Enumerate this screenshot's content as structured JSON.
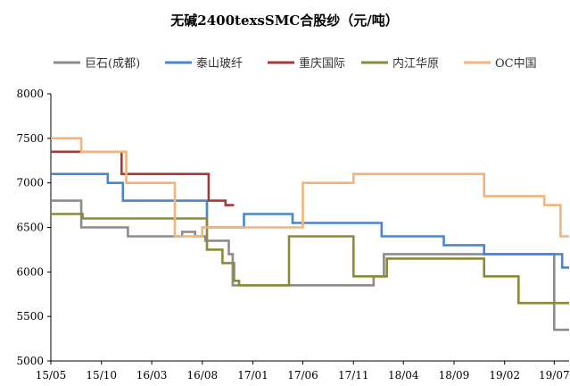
{
  "chart_data": {
    "type": "line",
    "title": "无碱2400texsSMC合股纱（元/吨）",
    "xlabel": "",
    "ylabel": "",
    "xlim": [
      "2015-05-01",
      "2019-08-15"
    ],
    "ylim": [
      5000,
      8000
    ],
    "y_ticks": [
      5000,
      5500,
      6000,
      6500,
      7000,
      7500,
      8000
    ],
    "x_ticks": [
      "15/05",
      "15/10",
      "16/03",
      "16/08",
      "17/01",
      "17/06",
      "17/11",
      "18/04",
      "18/09",
      "19/02",
      "19/07"
    ],
    "x_tick_dates": [
      "2015-05-01",
      "2015-10-01",
      "2016-03-01",
      "2016-08-01",
      "2017-01-01",
      "2017-06-01",
      "2017-11-01",
      "2018-04-01",
      "2018-09-01",
      "2019-02-01",
      "2019-07-01"
    ],
    "grid": false,
    "legend_position": "top",
    "series": [
      {
        "name": "巨石(成都)",
        "color": "#8c8c8c",
        "points": [
          [
            "2015-05-01",
            6800
          ],
          [
            "2015-08-01",
            6800
          ],
          [
            "2015-08-01",
            6500
          ],
          [
            "2015-12-20",
            6500
          ],
          [
            "2015-12-20",
            6400
          ],
          [
            "2016-06-01",
            6400
          ],
          [
            "2016-06-01",
            6450
          ],
          [
            "2016-07-10",
            6450
          ],
          [
            "2016-07-10",
            6400
          ],
          [
            "2016-08-10",
            6400
          ],
          [
            "2016-08-10",
            6350
          ],
          [
            "2016-10-20",
            6350
          ],
          [
            "2016-10-20",
            6200
          ],
          [
            "2016-11-01",
            6200
          ],
          [
            "2016-11-01",
            5850
          ],
          [
            "2018-01-01",
            5850
          ],
          [
            "2018-01-01",
            5950
          ],
          [
            "2018-02-01",
            5950
          ],
          [
            "2018-02-01",
            6200
          ],
          [
            "2019-07-01",
            6200
          ],
          [
            "2019-07-01",
            5350
          ],
          [
            "2019-08-15",
            5350
          ]
        ]
      },
      {
        "name": "泰山玻纤",
        "color": "#4a86d0",
        "points": [
          [
            "2015-05-01",
            7100
          ],
          [
            "2015-10-20",
            7100
          ],
          [
            "2015-10-20",
            7000
          ],
          [
            "2015-12-05",
            7000
          ],
          [
            "2015-12-05",
            6800
          ],
          [
            "2016-08-15",
            6800
          ],
          [
            "2016-08-15",
            6500
          ],
          [
            "2016-12-05",
            6500
          ],
          [
            "2016-12-05",
            6650
          ],
          [
            "2017-05-01",
            6650
          ],
          [
            "2017-05-01",
            6550
          ],
          [
            "2018-01-25",
            6550
          ],
          [
            "2018-01-25",
            6400
          ],
          [
            "2018-08-01",
            6400
          ],
          [
            "2018-08-01",
            6300
          ],
          [
            "2018-12-01",
            6300
          ],
          [
            "2018-12-01",
            6200
          ],
          [
            "2019-07-25",
            6200
          ],
          [
            "2019-07-25",
            6050
          ],
          [
            "2019-08-15",
            6050
          ]
        ]
      },
      {
        "name": "重庆国际",
        "color": "#a63a3a",
        "points": [
          [
            "2015-05-01",
            7350
          ],
          [
            "2015-12-01",
            7350
          ],
          [
            "2015-12-01",
            7100
          ],
          [
            "2016-08-20",
            7100
          ],
          [
            "2016-08-20",
            6800
          ],
          [
            "2016-10-10",
            6800
          ],
          [
            "2016-10-10",
            6750
          ],
          [
            "2016-11-05",
            6750
          ]
        ]
      },
      {
        "name": "内江华原",
        "color": "#8a8a3a",
        "points": [
          [
            "2015-05-01",
            6650
          ],
          [
            "2015-08-05",
            6650
          ],
          [
            "2015-08-05",
            6600
          ],
          [
            "2016-08-15",
            6600
          ],
          [
            "2016-08-15",
            6250
          ],
          [
            "2016-10-01",
            6250
          ],
          [
            "2016-10-01",
            6100
          ],
          [
            "2016-11-05",
            6100
          ],
          [
            "2016-11-05",
            5900
          ],
          [
            "2016-11-20",
            5900
          ],
          [
            "2016-11-20",
            5850
          ],
          [
            "2017-04-20",
            5850
          ],
          [
            "2017-04-20",
            6400
          ],
          [
            "2017-11-01",
            6400
          ],
          [
            "2017-11-01",
            5950
          ],
          [
            "2018-02-10",
            5950
          ],
          [
            "2018-02-10",
            6150
          ],
          [
            "2018-12-01",
            6150
          ],
          [
            "2018-12-01",
            5950
          ],
          [
            "2019-03-15",
            5950
          ],
          [
            "2019-03-15",
            5650
          ],
          [
            "2019-08-15",
            5650
          ]
        ]
      },
      {
        "name": "OC中国",
        "color": "#f5b27a",
        "points": [
          [
            "2015-05-01",
            7500
          ],
          [
            "2015-08-01",
            7500
          ],
          [
            "2015-08-01",
            7350
          ],
          [
            "2015-12-15",
            7350
          ],
          [
            "2015-12-15",
            7000
          ],
          [
            "2016-05-10",
            7000
          ],
          [
            "2016-05-10",
            6400
          ],
          [
            "2016-08-01",
            6400
          ],
          [
            "2016-08-01",
            6500
          ],
          [
            "2017-06-01",
            6500
          ],
          [
            "2017-06-01",
            7000
          ],
          [
            "2017-11-01",
            7000
          ],
          [
            "2017-11-01",
            7100
          ],
          [
            "2018-12-01",
            7100
          ],
          [
            "2018-12-01",
            6850
          ],
          [
            "2019-06-01",
            6850
          ],
          [
            "2019-06-01",
            6750
          ],
          [
            "2019-07-20",
            6750
          ],
          [
            "2019-07-20",
            6400
          ],
          [
            "2019-08-15",
            6400
          ]
        ]
      }
    ]
  }
}
